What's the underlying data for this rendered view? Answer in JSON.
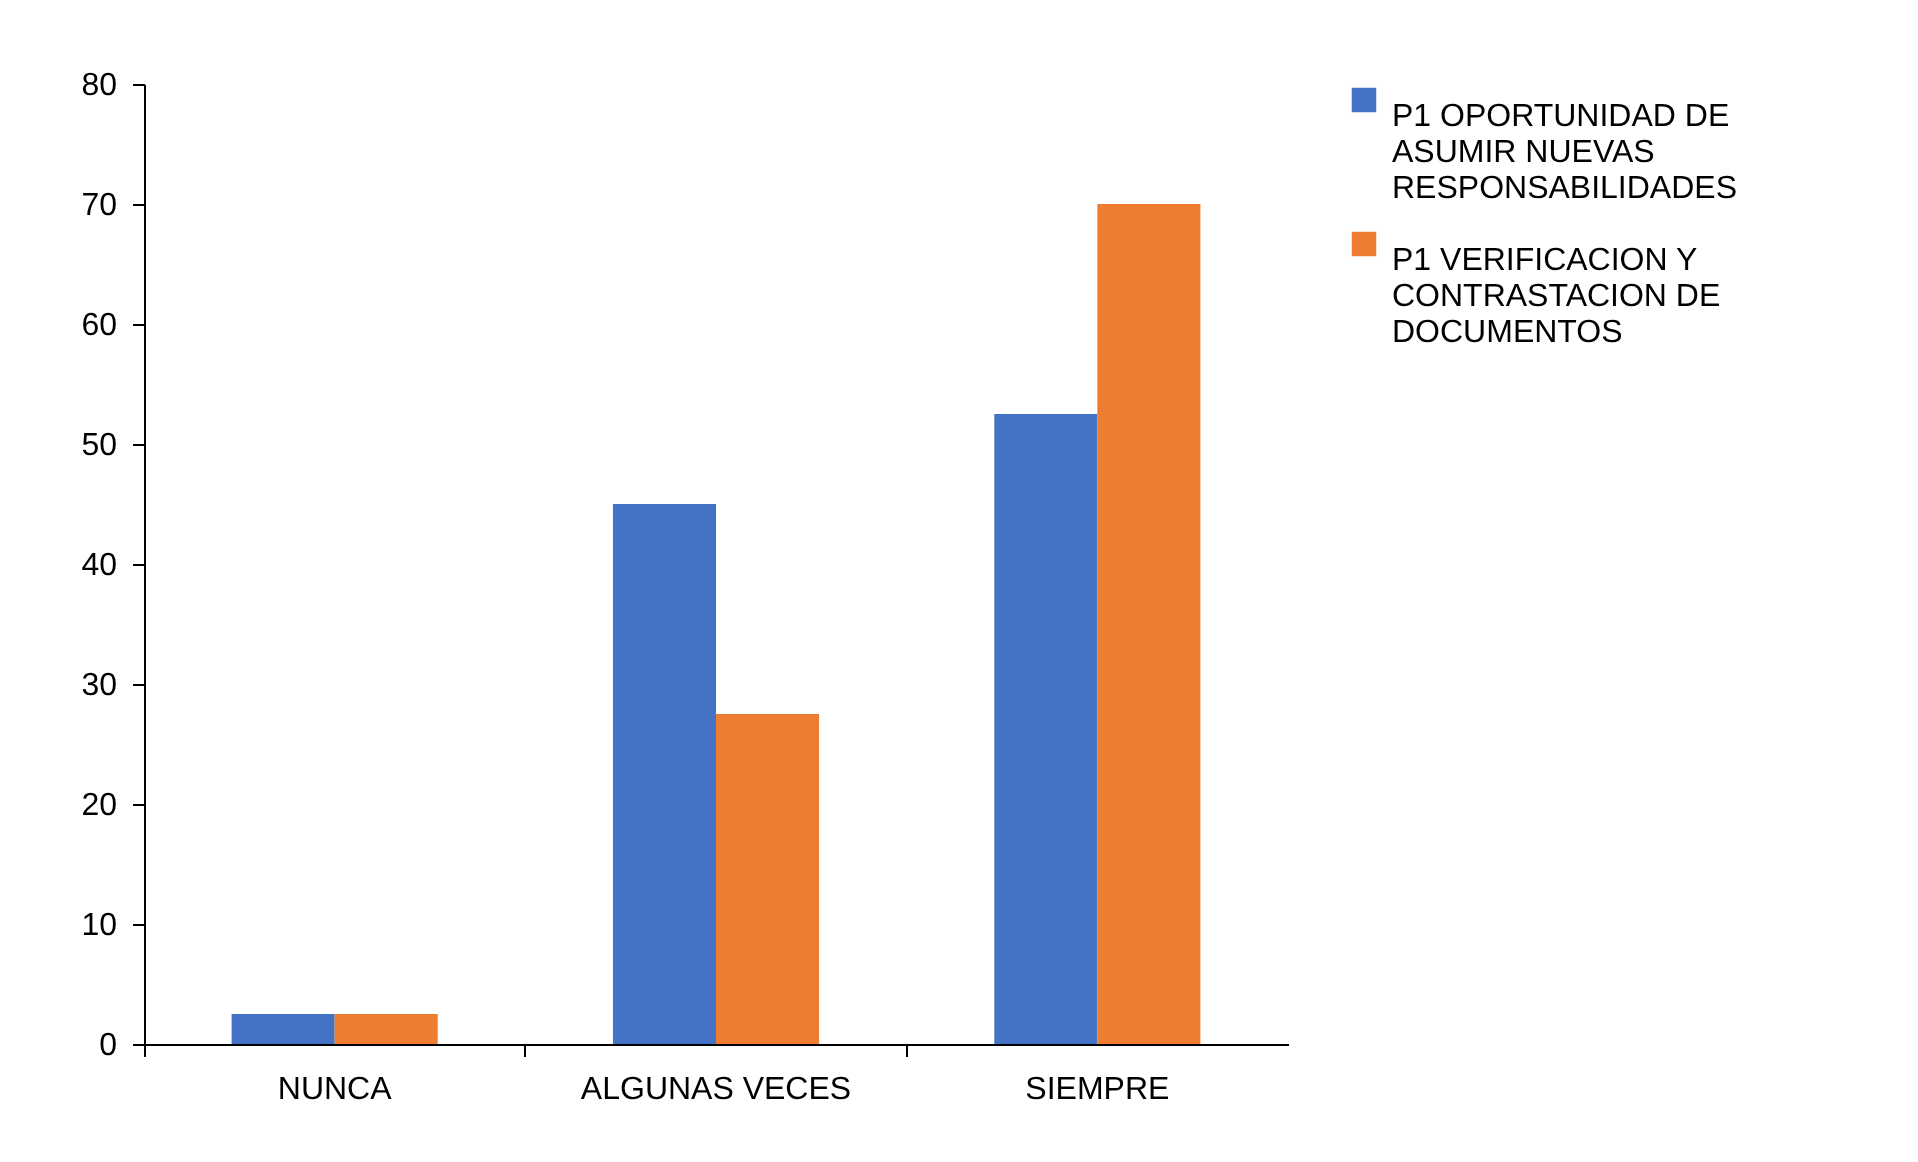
{
  "chart_data": {
    "type": "bar",
    "categories": [
      "NUNCA",
      "ALGUNAS VECES",
      "SIEMPRE"
    ],
    "series": [
      {
        "name": "P1 OPORTUNIDAD DE ASUMIR NUEVAS RESPONSABILIDADES",
        "color": "#4472c4",
        "values": [
          2.5,
          45,
          52.5
        ]
      },
      {
        "name": "P1 VERIFICACION Y CONTRASTACION DE DOCUMENTOS",
        "color": "#ed7d31",
        "values": [
          2.5,
          27.5,
          70
        ]
      }
    ],
    "ylim": [
      0,
      80
    ],
    "yticks": [
      0,
      10,
      20,
      30,
      40,
      50,
      60,
      70,
      80
    ],
    "grid": false,
    "legend": "right"
  }
}
